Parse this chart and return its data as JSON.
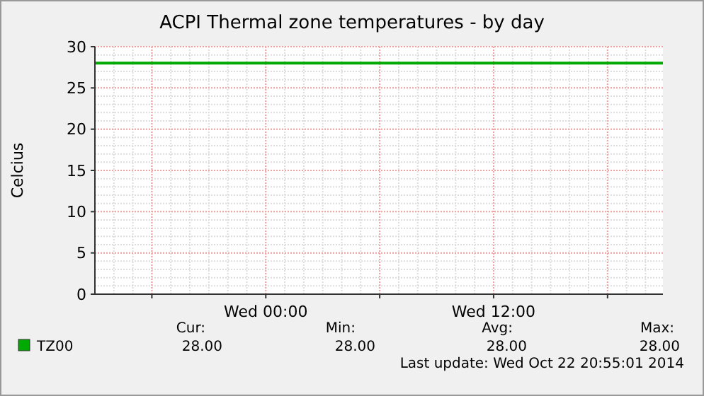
{
  "chart_data": {
    "type": "line",
    "title": "ACPI Thermal zone temperatures - by day",
    "ylabel": "Celcius",
    "x": [
      "2014-10-21T15:00",
      "2014-10-22T20:55"
    ],
    "series": [
      {
        "name": "TZ00",
        "color": "#00aa00",
        "values": [
          28,
          28
        ]
      }
    ],
    "xlim": [
      "2014-10-21T15:00",
      "2014-10-22T20:55"
    ],
    "xticks": [
      {
        "value": "2014-10-21T18:00",
        "label": null
      },
      {
        "value": "2014-10-22T00:00",
        "label": "Wed 00:00"
      },
      {
        "value": "2014-10-22T06:00",
        "label": null
      },
      {
        "value": "2014-10-22T12:00",
        "label": "Wed 12:00"
      },
      {
        "value": "2014-10-22T18:00",
        "label": null
      }
    ],
    "ylim": [
      0,
      30
    ],
    "yticks": [
      0,
      5,
      10,
      15,
      20,
      25,
      30
    ],
    "grid": true,
    "legend": "bottom",
    "line_style": "solid",
    "marker": "none",
    "annotations": [
      "Cur:",
      "Min:",
      "Avg:",
      "Max:",
      "28.00",
      "28.00",
      "28.00",
      "28.00",
      "Last update: Wed Oct 22 20:55:01 2014"
    ]
  }
}
